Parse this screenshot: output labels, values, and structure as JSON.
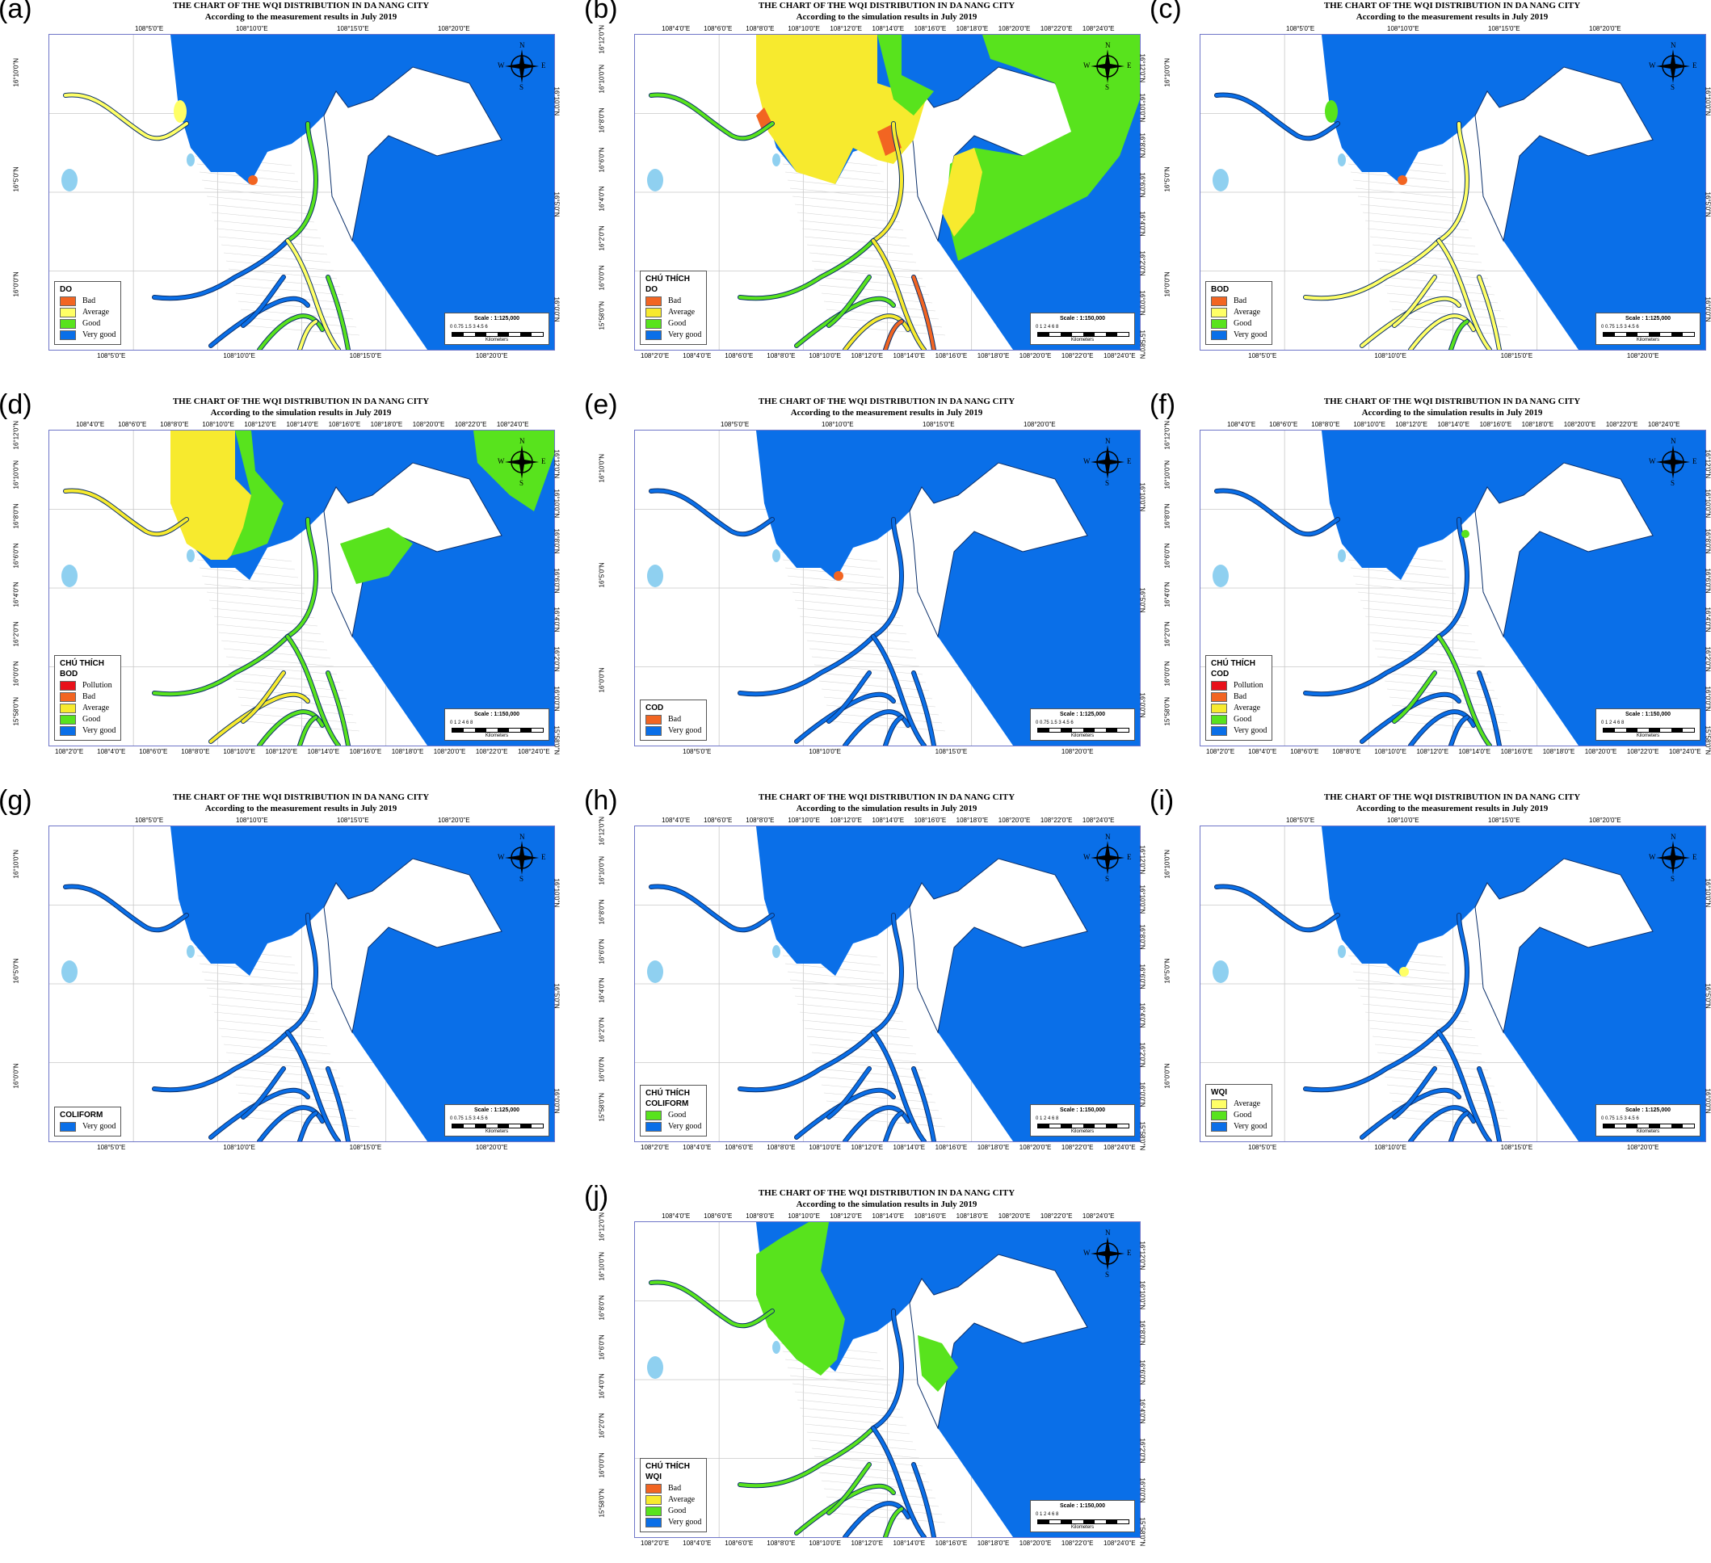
{
  "title": "THE CHART OF THE WQI DISTRIBUTION IN DA NANG CITY",
  "subtitles": {
    "measurement": "According to the measurement results in July 2019",
    "simulation": "According to the simulation results in July 2019"
  },
  "legend_heading": "CHÚ THÍCH",
  "compass": {
    "n": "N",
    "s": "S",
    "e": "E",
    "w": "W"
  },
  "scale": {
    "s125": "Scale : 1:125,000",
    "s150": "Scale : 1:150,000",
    "nums125": "0  0.75 1.5        3         4.5        6",
    "nums150": "0  1    2        4         6        8",
    "unit": "Kilometers"
  },
  "ticks": {
    "m_top": [
      "108°5'0\"E",
      "108°10'0\"E",
      "108°15'0\"E",
      "108°20'0\"E"
    ],
    "m_bottom": [
      "108°5'0\"E",
      "108°10'0\"E",
      "108°15'0\"E",
      "108°20'0\"E"
    ],
    "m_lat": [
      "16°10'0\"N",
      "16°5'0\"N",
      "16°0'0\"N"
    ],
    "s_top": [
      "108°4'0\"E",
      "108°6'0\"E",
      "108°8'0\"E",
      "108°10'0\"E",
      "108°12'0\"E",
      "108°14'0\"E",
      "108°16'0\"E",
      "108°18'0\"E",
      "108°20'0\"E",
      "108°22'0\"E",
      "108°24'0\"E"
    ],
    "s_bottom": [
      "108°2'0\"E",
      "108°4'0\"E",
      "108°6'0\"E",
      "108°8'0\"E",
      "108°10'0\"E",
      "108°12'0\"E",
      "108°14'0\"E",
      "108°16'0\"E",
      "108°18'0\"E",
      "108°20'0\"E",
      "108°22'0\"E",
      "108°24'0\"E"
    ],
    "s_lat": [
      "16°12'0\"N",
      "16°10'0\"N",
      "16°8'0\"N",
      "16°6'0\"N",
      "16°4'0\"N",
      "16°2'0\"N",
      "16°0'0\"N",
      "15°58'0\"N"
    ]
  },
  "colors": {
    "sea": "#0a6fe8",
    "land": "#ffffff",
    "bad": "#f26522",
    "average": "#ffff66",
    "average_dark": "#f7ea2e",
    "good": "#58e31d",
    "pollution": "#e8101a",
    "pond": "#8fd0f0",
    "grid": "#c8c8c8"
  },
  "panels": [
    {
      "label": "(a)",
      "subtitle": "According to the measurement results in July 2019",
      "heading": "",
      "param": "DO",
      "scale": "Scale : 1:125,000",
      "legend": [
        {
          "name": "Bad",
          "color": "#f26522"
        },
        {
          "name": "Average",
          "color": "#ffff66"
        },
        {
          "name": "Good",
          "color": "#58e31d"
        },
        {
          "name": "Very good",
          "color": "#0a6fe8"
        }
      ]
    },
    {
      "label": "(b)",
      "subtitle": "According to the simulation results in July 2019",
      "heading": "CHÚ THÍCH",
      "param": "DO",
      "scale": "Scale : 1:150,000",
      "legend": [
        {
          "name": "Bad",
          "color": "#f26522"
        },
        {
          "name": "Average",
          "color": "#f7ea2e"
        },
        {
          "name": "Good",
          "color": "#58e31d"
        },
        {
          "name": "Very good",
          "color": "#0a6fe8"
        }
      ]
    },
    {
      "label": "(c)",
      "subtitle": "According to the measurement results in July 2019",
      "heading": "",
      "param": "BOD",
      "scale": "Scale : 1:125,000",
      "legend": [
        {
          "name": "Bad",
          "color": "#f26522"
        },
        {
          "name": "Average",
          "color": "#ffff66"
        },
        {
          "name": "Good",
          "color": "#58e31d"
        },
        {
          "name": "Very good",
          "color": "#0a6fe8"
        }
      ]
    },
    {
      "label": "(d)",
      "subtitle": "According to the simulation results in July 2019",
      "heading": "CHÚ THÍCH",
      "param": "BOD",
      "scale": "Scale : 1:150,000",
      "legend": [
        {
          "name": "Pollution",
          "color": "#e8101a"
        },
        {
          "name": "Bad",
          "color": "#f26522"
        },
        {
          "name": "Average",
          "color": "#f7ea2e"
        },
        {
          "name": "Good",
          "color": "#58e31d"
        },
        {
          "name": "Very good",
          "color": "#0a6fe8"
        }
      ]
    },
    {
      "label": "(e)",
      "subtitle": "According to the measurement results in July 2019",
      "heading": "",
      "param": "COD",
      "scale": "Scale : 1:125,000",
      "legend": [
        {
          "name": "Bad",
          "color": "#f26522"
        },
        {
          "name": "Very good",
          "color": "#0a6fe8"
        }
      ]
    },
    {
      "label": "(f)",
      "subtitle": "According to the simulation results in July 2019",
      "heading": "CHÚ THÍCH",
      "param": "COD",
      "scale": "Scale : 1:150,000",
      "legend": [
        {
          "name": "Pollution",
          "color": "#e8101a"
        },
        {
          "name": "Bad",
          "color": "#f26522"
        },
        {
          "name": "Average",
          "color": "#f7ea2e"
        },
        {
          "name": "Good",
          "color": "#58e31d"
        },
        {
          "name": "Very good",
          "color": "#0a6fe8"
        }
      ]
    },
    {
      "label": "(g)",
      "subtitle": "According to the measurement results in July 2019",
      "heading": "",
      "param": "COLIFORM",
      "scale": "Scale : 1:125,000",
      "legend": [
        {
          "name": "Very good",
          "color": "#0a6fe8"
        }
      ]
    },
    {
      "label": "(h)",
      "subtitle": "According to the simulation results in July 2019",
      "heading": "CHÚ THÍCH",
      "param": "COLIFORM",
      "scale": "Scale : 1:150,000",
      "legend": [
        {
          "name": "Good",
          "color": "#58e31d"
        },
        {
          "name": "Very good",
          "color": "#0a6fe8"
        }
      ]
    },
    {
      "label": "(i)",
      "subtitle": "According to the measurement results in July 2019",
      "heading": "",
      "param": "WQI",
      "scale": "Scale : 1:125,000",
      "legend": [
        {
          "name": "Average",
          "color": "#ffff66"
        },
        {
          "name": "Good",
          "color": "#58e31d"
        },
        {
          "name": "Very good",
          "color": "#0a6fe8"
        }
      ]
    },
    {
      "label": "(j)",
      "subtitle": "According to the simulation results in July 2019",
      "heading": "CHÚ THÍCH",
      "param": "WQI",
      "scale": "Scale : 1:150,000",
      "legend": [
        {
          "name": "Bad",
          "color": "#f26522"
        },
        {
          "name": "Average",
          "color": "#f7ea2e"
        },
        {
          "name": "Good",
          "color": "#58e31d"
        },
        {
          "name": "Very good",
          "color": "#0a6fe8"
        }
      ]
    }
  ]
}
